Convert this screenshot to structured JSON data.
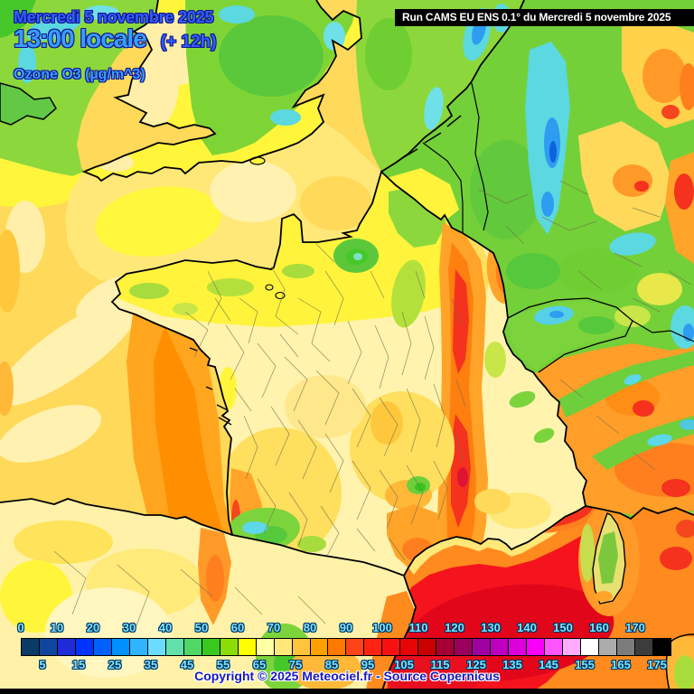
{
  "header": {
    "date_line": "Mercredi 5 novembre 2025",
    "time_line": "13:00 locale",
    "time_offset": "(+ 12h)",
    "variable_label": "Ozone O3 (µg/m^3)",
    "run_info": "Run CAMS EU ENS 0.1° du Mercredi 5 novembre 2025"
  },
  "footer": {
    "copyright": "Copyright © 2025 Meteociel.fr - Source Copernicus"
  },
  "legend": {
    "unit": "µg/m^3",
    "min": 0,
    "max": 180,
    "step": 5,
    "top_labels": [
      "0",
      "10",
      "20",
      "30",
      "40",
      "50",
      "60",
      "70",
      "80",
      "90",
      "100",
      "110",
      "120",
      "130",
      "140",
      "150",
      "160",
      "170"
    ],
    "bottom_labels": [
      "5",
      "15",
      "25",
      "35",
      "45",
      "55",
      "65",
      "75",
      "85",
      "95",
      "105",
      "115",
      "125",
      "135",
      "145",
      "155",
      "165",
      "175"
    ],
    "cell_colors": [
      "#0A3A66",
      "#10459E",
      "#1F2BD8",
      "#0033FF",
      "#0061FF",
      "#0090FF",
      "#2FB5FF",
      "#6BDCFF",
      "#62E0AC",
      "#50D766",
      "#39C81E",
      "#8CDC0A",
      "#FFFF00",
      "#FFFFA3",
      "#FFE878",
      "#FFC33C",
      "#FFA000",
      "#FF7800",
      "#FF4318",
      "#FF2314",
      "#F81111",
      "#E60404",
      "#C80000",
      "#A60035",
      "#99005E",
      "#A000A0",
      "#BE00BE",
      "#DC00DC",
      "#F800F8",
      "#FF55FF",
      "#FFABFF",
      "#FFFFFF",
      "#ACACAC",
      "#7C7C7C",
      "#3C3C3C",
      "#000000"
    ]
  },
  "colors": {
    "date_text": "#2F5FFF",
    "time_text": "#389EFF",
    "text_outline": "#14148C",
    "legend_number_text": "#78E8FF",
    "legend_number_outline": "#003060",
    "run_bar_bg": "#000000",
    "run_bar_text": "#FFFFFF",
    "copyright_text": "#1818BE",
    "bottom_strip": "#000000"
  }
}
